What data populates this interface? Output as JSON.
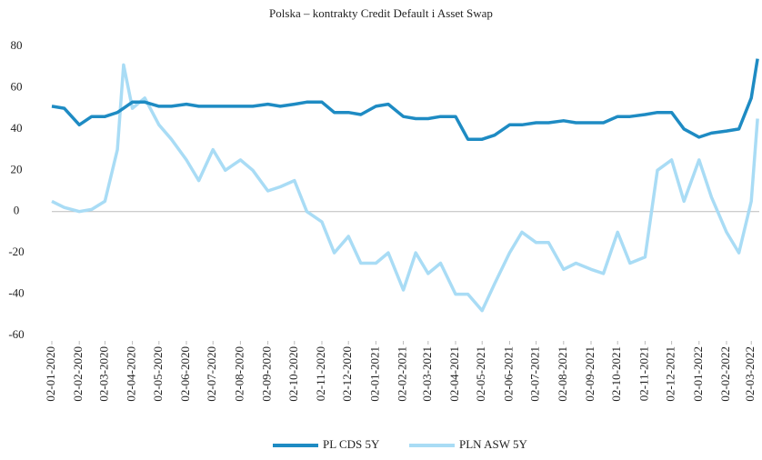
{
  "chart_data": {
    "type": "line",
    "title": "Polska – kontrakty Credit Default i Asset Swap",
    "x": [
      "02-01-2020",
      "16-01-2020",
      "02-02-2020",
      "16-02-2020",
      "02-03-2020",
      "16-03-2020",
      "23-03-2020",
      "02-04-2020",
      "16-04-2020",
      "02-05-2020",
      "16-05-2020",
      "02-06-2020",
      "16-06-2020",
      "02-07-2020",
      "16-07-2020",
      "02-08-2020",
      "16-08-2020",
      "02-09-2020",
      "16-09-2020",
      "02-10-2020",
      "16-10-2020",
      "02-11-2020",
      "16-11-2020",
      "02-12-2020",
      "16-12-2020",
      "02-01-2021",
      "16-01-2021",
      "02-02-2021",
      "16-02-2021",
      "02-03-2021",
      "16-03-2021",
      "02-04-2021",
      "16-04-2021",
      "02-05-2021",
      "16-05-2021",
      "02-06-2021",
      "16-06-2021",
      "02-07-2021",
      "16-07-2021",
      "02-08-2021",
      "16-08-2021",
      "02-09-2021",
      "16-09-2021",
      "02-10-2021",
      "16-10-2021",
      "02-11-2021",
      "16-11-2021",
      "02-12-2021",
      "16-12-2021",
      "02-01-2022",
      "16-01-2022",
      "02-02-2022",
      "16-02-2022",
      "02-03-2022",
      "09-03-2022"
    ],
    "series": [
      {
        "name": "PL CDS 5Y",
        "color": "#1e8bc3",
        "values": [
          51,
          50,
          42,
          46,
          46,
          48,
          50,
          53,
          53,
          51,
          51,
          52,
          51,
          51,
          51,
          51,
          51,
          52,
          51,
          52,
          53,
          53,
          48,
          48,
          47,
          51,
          52,
          46,
          45,
          45,
          46,
          46,
          35,
          35,
          37,
          42,
          42,
          43,
          43,
          44,
          43,
          43,
          43,
          46,
          46,
          47,
          48,
          48,
          40,
          36,
          38,
          39,
          40,
          55,
          74
        ]
      },
      {
        "name": "PLN ASW 5Y",
        "color": "#a9dcf5",
        "values": [
          5,
          2,
          0,
          1,
          5,
          30,
          71,
          50,
          55,
          42,
          35,
          25,
          15,
          30,
          20,
          25,
          20,
          10,
          12,
          15,
          0,
          -5,
          -20,
          -12,
          -25,
          -25,
          -20,
          -38,
          -20,
          -30,
          -25,
          -40,
          -40,
          -48,
          -35,
          -20,
          -10,
          -15,
          -15,
          -28,
          -25,
          -28,
          -30,
          -10,
          -25,
          -22,
          20,
          25,
          5,
          25,
          7,
          -10,
          -20,
          5,
          45
        ]
      }
    ],
    "xlim": [
      "02-01-2020",
      "11-03-2022"
    ],
    "xticks": [
      "02-01-2020",
      "02-02-2020",
      "02-03-2020",
      "02-04-2020",
      "02-05-2020",
      "02-06-2020",
      "02-07-2020",
      "02-08-2020",
      "02-09-2020",
      "02-10-2020",
      "02-11-2020",
      "02-12-2020",
      "02-01-2021",
      "02-02-2021",
      "02-03-2021",
      "02-04-2021",
      "02-05-2021",
      "02-06-2021",
      "02-07-2021",
      "02-08-2021",
      "02-09-2021",
      "02-10-2021",
      "02-11-2021",
      "02-12-2021",
      "02-01-2022",
      "02-02-2022",
      "02-03-2022"
    ],
    "ylim": [
      -60,
      80
    ],
    "yticks": [
      -60,
      -40,
      -20,
      0,
      20,
      40,
      60,
      80
    ],
    "legend": "bottom"
  }
}
